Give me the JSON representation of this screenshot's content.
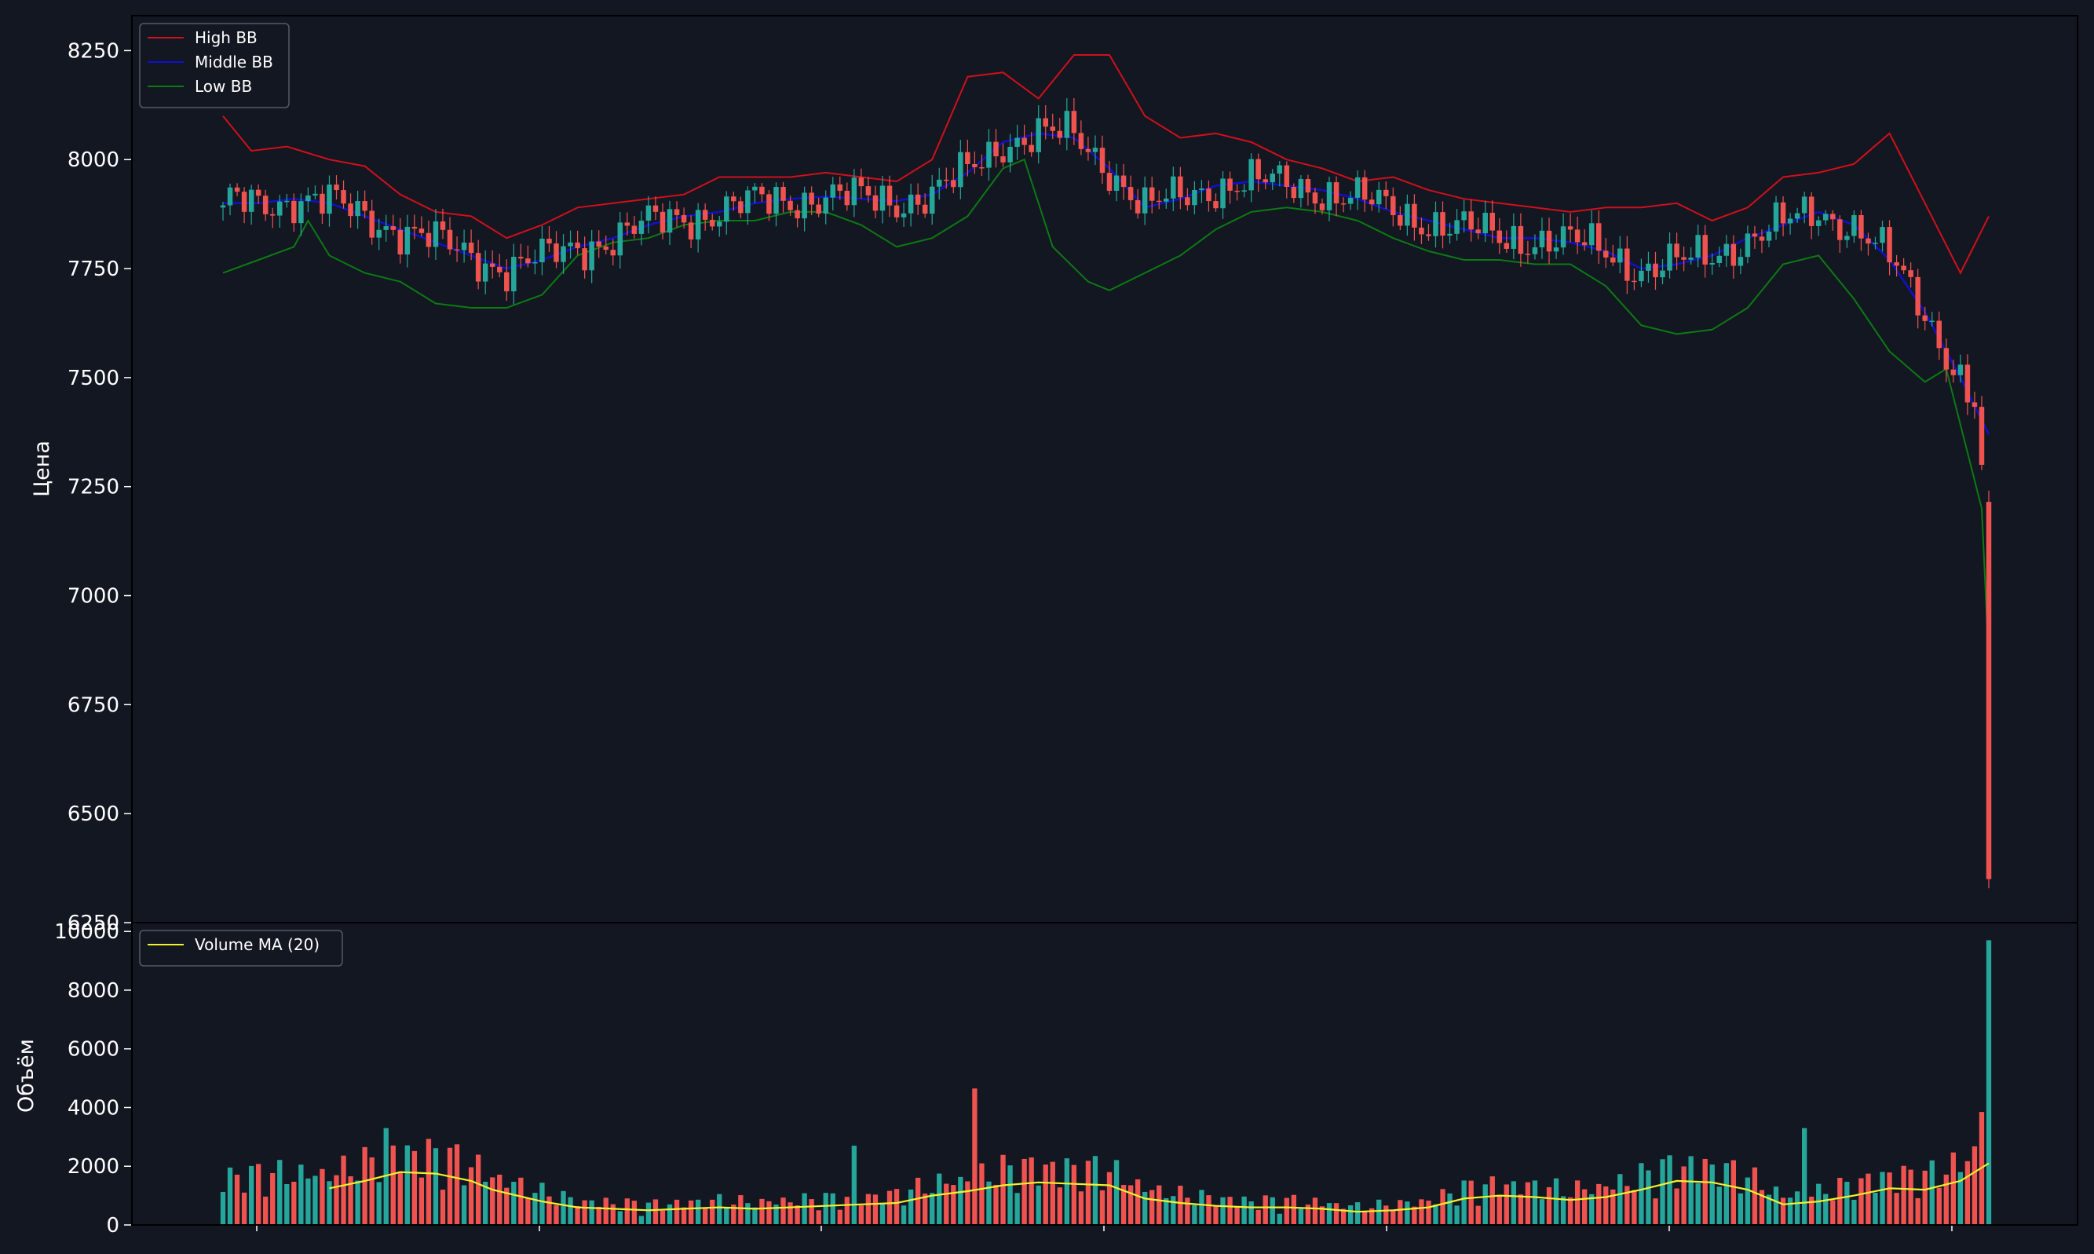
{
  "colors": {
    "background": "#131722",
    "axes_frame": "#000000",
    "up": "#26a69a",
    "down": "#ef5350",
    "high_bb": "#d0101a",
    "middle_bb": "#1010d0",
    "low_bb": "#0c7a12",
    "volume_ma": "#f2f22a",
    "text": "#ffffff"
  },
  "chart_data": [
    {
      "type": "candlestick",
      "ylabel": "Цена",
      "ylim": [
        6250,
        8330
      ],
      "yticks": [
        6250,
        6500,
        6750,
        7000,
        7250,
        7500,
        7750,
        8000,
        8250
      ],
      "ytick_labels": [
        "6250",
        "6500",
        "6750",
        "7000",
        "7250",
        "7500",
        "7750",
        "8000",
        "8250"
      ],
      "xtick_labels": [],
      "legend": {
        "position": "upper-left",
        "entries": [
          "High BB",
          "Middle BB",
          "Low BB"
        ]
      },
      "candle_count": 250,
      "series": [
        {
          "name": "High BB",
          "x": [
            0,
            4,
            9,
            15,
            20,
            25,
            30,
            35,
            40,
            45,
            50,
            55,
            60,
            65,
            70,
            75,
            80,
            85,
            90,
            95,
            100,
            105,
            110,
            115,
            120,
            125,
            130,
            135,
            140,
            145,
            150,
            155,
            160,
            165,
            170,
            175,
            180,
            185,
            190,
            195,
            200,
            205,
            210,
            215,
            220,
            225,
            230,
            235,
            240,
            245,
            249
          ],
          "y": [
            8100,
            8020,
            8030,
            8000,
            7985,
            7920,
            7880,
            7870,
            7820,
            7850,
            7890,
            7900,
            7910,
            7920,
            7960,
            7960,
            7960,
            7970,
            7960,
            7950,
            8000,
            8190,
            8200,
            8140,
            8240,
            8240,
            8100,
            8050,
            8060,
            8040,
            8000,
            7980,
            7950,
            7960,
            7930,
            7910,
            7900,
            7890,
            7880,
            7890,
            7890,
            7900,
            7860,
            7890,
            7960,
            7970,
            7990,
            8060,
            7900,
            7740,
            7870
          ]
        },
        {
          "name": "Middle BB",
          "x": [
            0,
            5,
            10,
            15,
            20,
            25,
            30,
            35,
            40,
            45,
            50,
            55,
            60,
            65,
            70,
            75,
            80,
            85,
            90,
            95,
            100,
            105,
            110,
            115,
            120,
            125,
            130,
            135,
            140,
            145,
            150,
            155,
            160,
            165,
            170,
            175,
            180,
            185,
            190,
            195,
            200,
            205,
            210,
            215,
            220,
            225,
            230,
            235,
            240,
            245,
            249
          ],
          "y": [
            7900,
            7900,
            7910,
            7900,
            7870,
            7840,
            7810,
            7780,
            7750,
            7770,
            7800,
            7820,
            7850,
            7870,
            7880,
            7900,
            7910,
            7915,
            7910,
            7905,
            7920,
            7970,
            8040,
            8060,
            8050,
            7980,
            7890,
            7910,
            7940,
            7950,
            7940,
            7930,
            7910,
            7880,
            7860,
            7840,
            7820,
            7820,
            7810,
            7790,
            7750,
            7760,
            7780,
            7820,
            7850,
            7880,
            7850,
            7770,
            7650,
            7500,
            7370
          ]
        },
        {
          "name": "Low BB",
          "x": [
            0,
            5,
            10,
            12,
            15,
            20,
            25,
            30,
            35,
            40,
            45,
            50,
            55,
            60,
            65,
            70,
            75,
            80,
            85,
            90,
            95,
            100,
            105,
            110,
            113,
            117,
            122,
            125,
            130,
            135,
            140,
            145,
            150,
            155,
            160,
            165,
            170,
            175,
            180,
            185,
            190,
            195,
            200,
            205,
            210,
            215,
            220,
            225,
            230,
            235,
            240,
            243,
            248,
            249
          ],
          "y": [
            7740,
            7770,
            7800,
            7860,
            7780,
            7740,
            7720,
            7670,
            7660,
            7660,
            7690,
            7780,
            7810,
            7820,
            7850,
            7860,
            7860,
            7880,
            7880,
            7850,
            7800,
            7820,
            7870,
            7980,
            8000,
            7800,
            7720,
            7700,
            7740,
            7780,
            7840,
            7880,
            7890,
            7880,
            7860,
            7820,
            7790,
            7770,
            7770,
            7760,
            7760,
            7710,
            7620,
            7600,
            7610,
            7660,
            7760,
            7780,
            7680,
            7560,
            7490,
            7520,
            7200,
            6850
          ]
        }
      ]
    },
    {
      "type": "bar",
      "ylabel": "Объём",
      "ylim": [
        0,
        10300
      ],
      "yticks": [
        0,
        2000,
        4000,
        6000,
        8000,
        10000
      ],
      "ytick_labels": [
        "0",
        "2000",
        "4000",
        "6000",
        "8000",
        "10000"
      ],
      "legend": {
        "position": "upper-left",
        "entries": [
          "Volume MA (20)"
        ]
      },
      "series": [
        {
          "name": "Volume MA (20)",
          "x": [
            15,
            20,
            25,
            30,
            35,
            38,
            45,
            50,
            55,
            60,
            65,
            70,
            75,
            80,
            85,
            90,
            95,
            100,
            105,
            110,
            115,
            120,
            125,
            130,
            135,
            140,
            145,
            150,
            155,
            160,
            165,
            170,
            175,
            180,
            185,
            190,
            195,
            200,
            205,
            210,
            215,
            220,
            225,
            230,
            235,
            240,
            245,
            249
          ],
          "y": [
            1250,
            1500,
            1800,
            1750,
            1500,
            1200,
            800,
            600,
            550,
            500,
            550,
            600,
            550,
            600,
            650,
            700,
            750,
            1000,
            1150,
            1350,
            1450,
            1400,
            1350,
            900,
            750,
            650,
            600,
            600,
            550,
            450,
            500,
            600,
            900,
            1000,
            950,
            850,
            950,
            1200,
            1500,
            1450,
            1200,
            700,
            800,
            1000,
            1250,
            1200,
            1500,
            2100
          ]
        }
      ]
    }
  ]
}
